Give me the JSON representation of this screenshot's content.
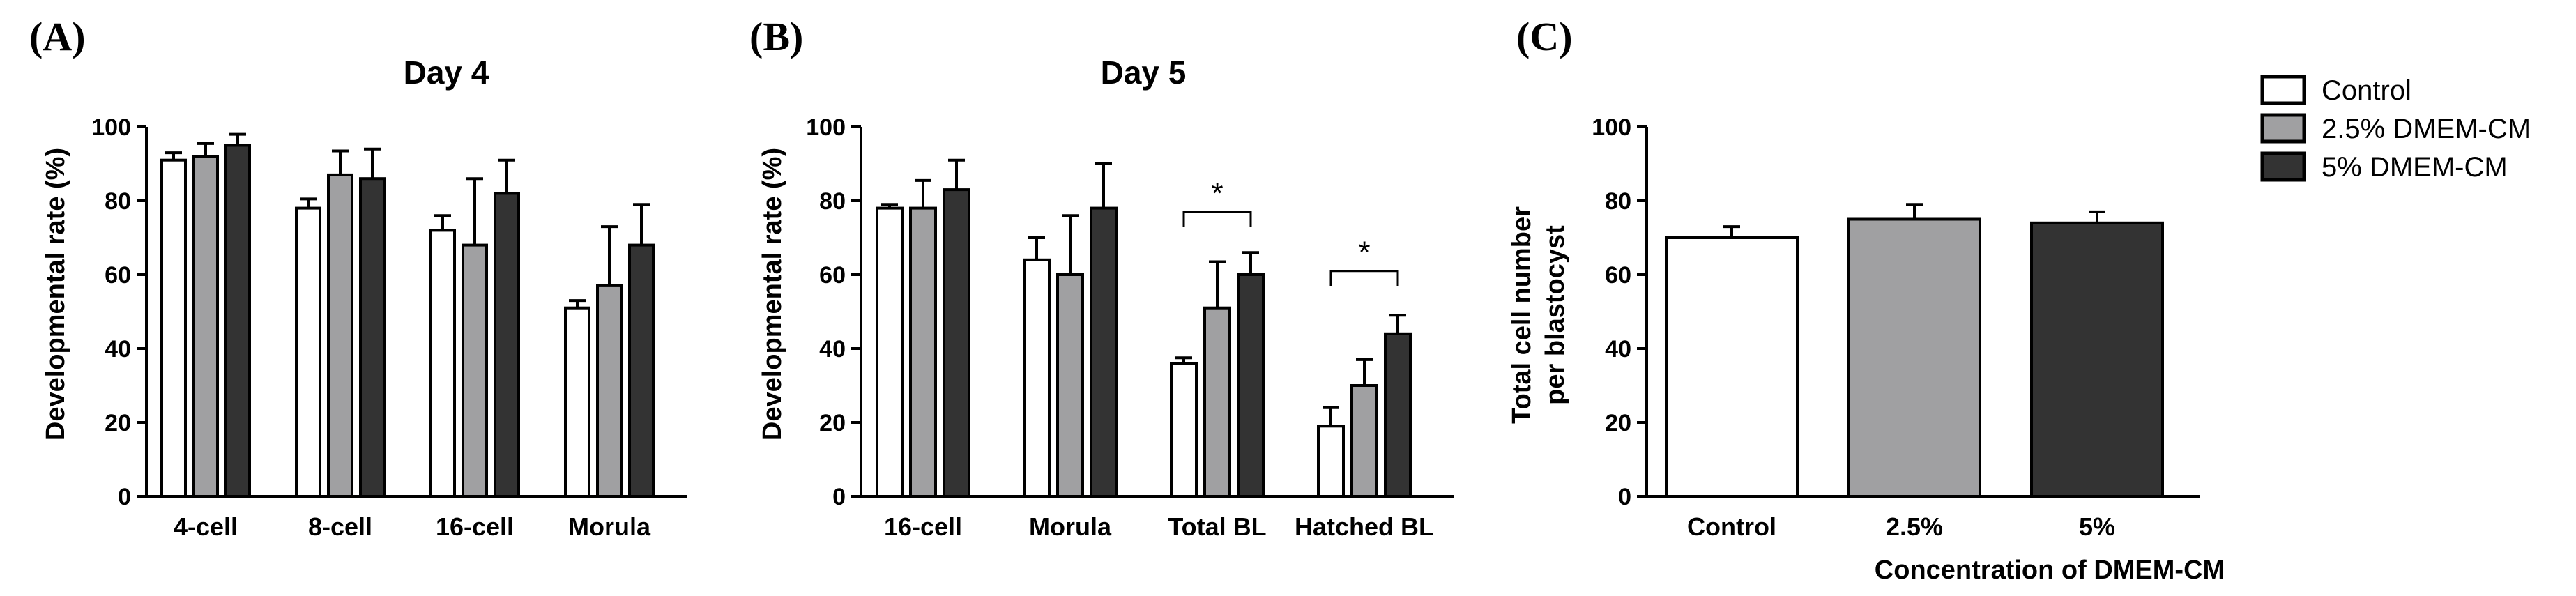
{
  "legend": {
    "items": [
      {
        "label": "Control",
        "color": "#ffffff"
      },
      {
        "label": "2.5% DMEM-CM",
        "color": "#a0a0a2"
      },
      {
        "label": "5% DMEM-CM",
        "color": "#333333"
      }
    ]
  },
  "chart_data": [
    {
      "panel": "(A)",
      "type": "bar",
      "title": "Day 4",
      "xlabel": "",
      "ylabel": "Developmental rate (%)",
      "ylim": [
        0,
        100
      ],
      "yticks": [
        0,
        20,
        40,
        60,
        80,
        100
      ],
      "categories": [
        "4-cell",
        "8-cell",
        "16-cell",
        "Morula"
      ],
      "series": [
        {
          "name": "Control",
          "values": [
            91,
            78,
            72,
            51
          ],
          "errors": [
            2,
            2.5,
            4,
            2
          ]
        },
        {
          "name": "2.5% DMEM-CM",
          "values": [
            92,
            87,
            68,
            57
          ],
          "errors": [
            3.5,
            6.5,
            18,
            16
          ]
        },
        {
          "name": "5% DMEM-CM",
          "values": [
            95,
            86,
            82,
            68
          ],
          "errors": [
            3,
            8,
            9,
            11
          ]
        }
      ],
      "annotations": []
    },
    {
      "panel": "(B)",
      "type": "bar",
      "title": "Day 5",
      "xlabel": "",
      "ylabel": "Developmental rate (%)",
      "ylim": [
        0,
        100
      ],
      "yticks": [
        0,
        20,
        40,
        60,
        80,
        100
      ],
      "categories": [
        "16-cell",
        "Morula",
        "Total BL",
        "Hatched BL"
      ],
      "series": [
        {
          "name": "Control",
          "values": [
            78,
            64,
            36,
            19
          ],
          "errors": [
            1,
            6,
            1.5,
            5
          ]
        },
        {
          "name": "2.5% DMEM-CM",
          "values": [
            78,
            60,
            51,
            30
          ],
          "errors": [
            7.5,
            16,
            12.5,
            7
          ]
        },
        {
          "name": "5% DMEM-CM",
          "values": [
            83,
            78,
            60,
            44
          ],
          "errors": [
            8,
            12,
            6,
            5
          ]
        }
      ],
      "annotations": [
        {
          "text": "*",
          "category": "Total BL",
          "bracket_y": 77
        },
        {
          "text": "*",
          "category": "Hatched BL",
          "bracket_y": 61
        }
      ]
    },
    {
      "panel": "(C)",
      "type": "bar",
      "title": "",
      "xlabel": "Concentration of DMEM-CM",
      "ylabel": [
        "Total cell number",
        "per blastocyst"
      ],
      "ylim": [
        0,
        100
      ],
      "yticks": [
        0,
        20,
        40,
        60,
        80,
        100
      ],
      "categories": [
        "Control",
        "2.5%",
        "5%"
      ],
      "values": [
        70,
        75,
        74
      ],
      "errors": [
        3,
        4,
        3
      ],
      "colors": [
        "#ffffff",
        "#a0a0a2",
        "#333333"
      ]
    }
  ]
}
